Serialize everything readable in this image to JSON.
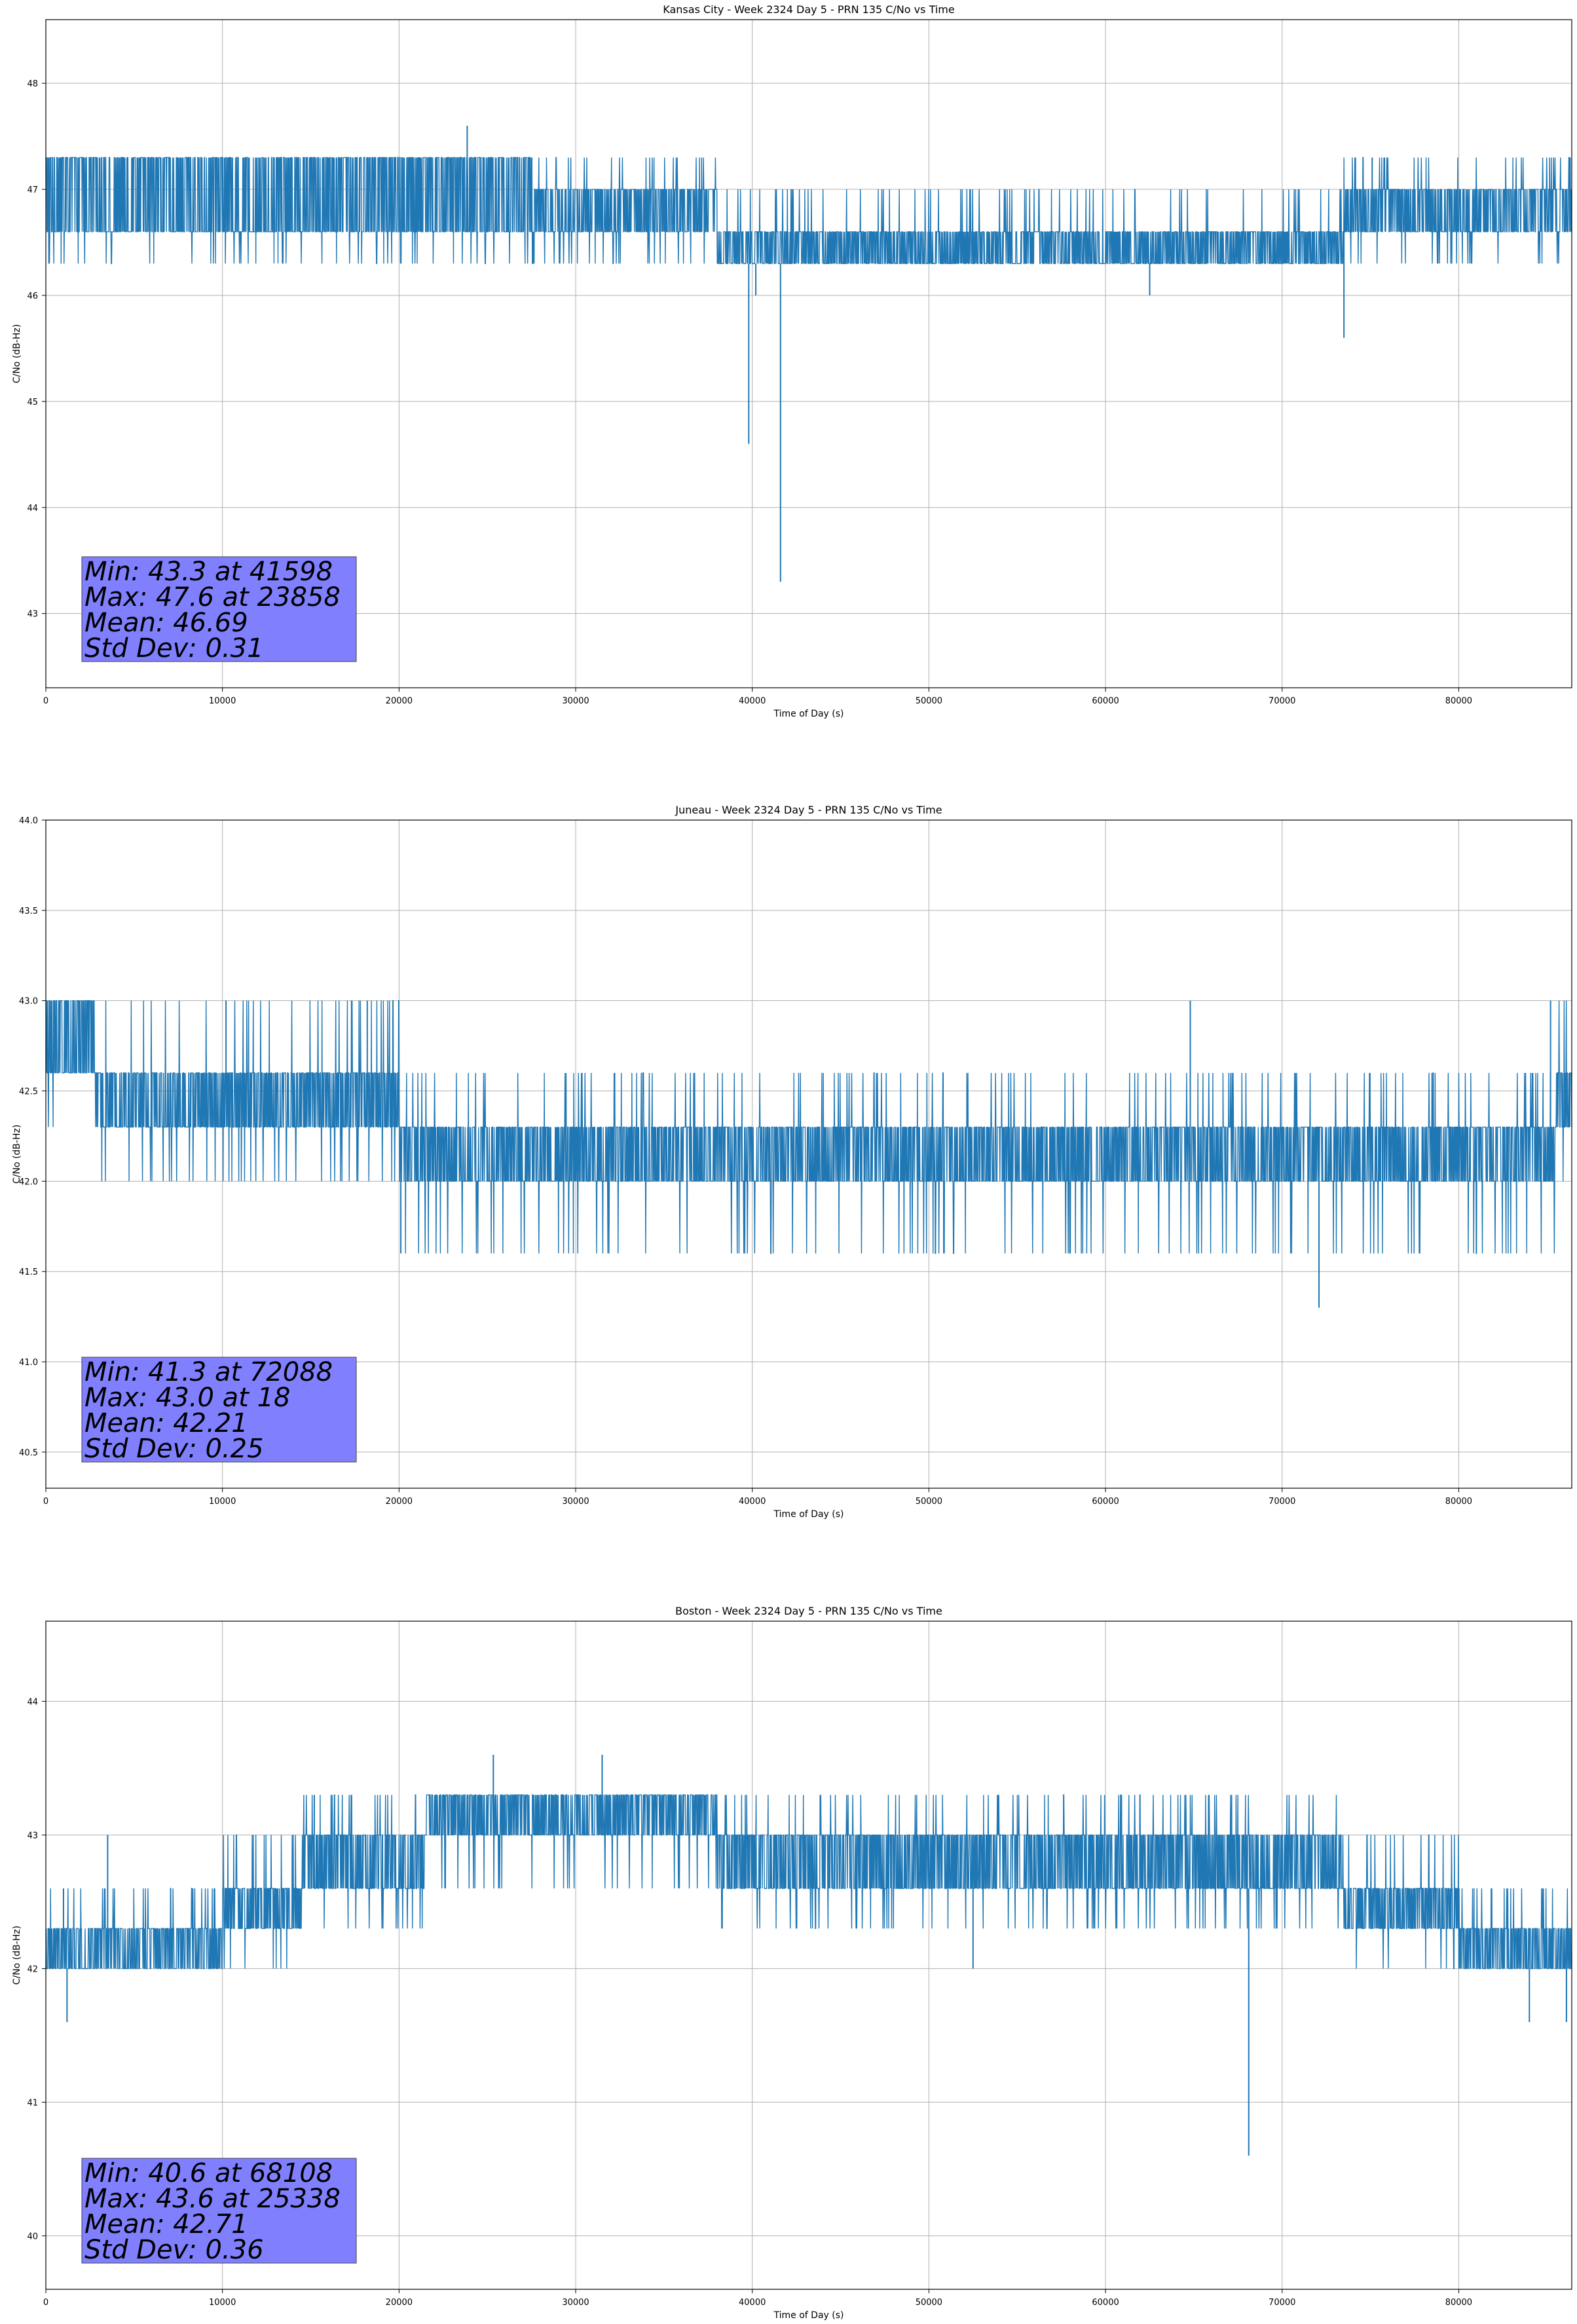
{
  "chart_data": [
    {
      "type": "line",
      "title": "Kansas City - Week 2324 Day 5 - PRN 135 C/No vs Time",
      "xlabel": "Time of Day (s)",
      "ylabel": "C/No (dB-Hz)",
      "xlim": [
        0,
        86400
      ],
      "ylim": [
        42.3,
        48.6
      ],
      "xticks": [
        0,
        10000,
        20000,
        30000,
        40000,
        50000,
        60000,
        70000,
        80000
      ],
      "yticks": [
        43,
        44,
        45,
        46,
        47,
        48
      ],
      "grid": true,
      "color": "#1f77b4",
      "levels": [
        46.3,
        46.6,
        47.0,
        47.3
      ],
      "baseline": [
        {
          "x": 0,
          "lo": 46.6,
          "hi": 47.3
        },
        {
          "x": 27500,
          "lo": 46.6,
          "hi": 47.3
        },
        {
          "x": 27600,
          "lo": 46.6,
          "hi": 47.0
        },
        {
          "x": 37500,
          "lo": 46.6,
          "hi": 47.0
        },
        {
          "x": 38000,
          "lo": 46.3,
          "hi": 46.6
        },
        {
          "x": 73000,
          "lo": 46.3,
          "hi": 46.6
        },
        {
          "x": 73500,
          "lo": 46.6,
          "hi": 47.0
        },
        {
          "x": 86400,
          "lo": 46.6,
          "hi": 47.0
        }
      ],
      "spikes": [
        {
          "x": 23858,
          "y": 47.6
        },
        {
          "x": 39800,
          "y": 44.6
        },
        {
          "x": 41598,
          "y": 43.3
        },
        {
          "x": 40200,
          "y": 46.0
        },
        {
          "x": 62500,
          "y": 46.0
        },
        {
          "x": 73500,
          "y": 45.6
        },
        {
          "x": 75100,
          "y": 47.3
        },
        {
          "x": 86300,
          "y": 47.3
        }
      ],
      "stats": [
        "Min: 43.3 at 41598",
        "Max: 47.6 at 23858",
        "Mean: 46.69",
        "Std Dev: 0.31"
      ],
      "statbox_color": "#8080ff"
    },
    {
      "type": "line",
      "title": "Juneau - Week 2324 Day 5 - PRN 135 C/No vs Time",
      "xlabel": "Time of Day (s)",
      "ylabel": "C/No (dB-Hz)",
      "xlim": [
        0,
        86400
      ],
      "ylim": [
        40.3,
        44.0
      ],
      "xticks": [
        0,
        10000,
        20000,
        30000,
        40000,
        50000,
        60000,
        70000,
        80000
      ],
      "yticks": [
        40.5,
        41.0,
        41.5,
        42.0,
        42.5,
        43.0,
        43.5,
        44.0
      ],
      "grid": true,
      "color": "#1f77b4",
      "levels": [
        41.6,
        42.0,
        42.3,
        42.6,
        43.0
      ],
      "baseline": [
        {
          "x": 0,
          "lo": 42.6,
          "hi": 43.0
        },
        {
          "x": 2800,
          "lo": 42.3,
          "hi": 42.6
        },
        {
          "x": 19500,
          "lo": 42.3,
          "hi": 42.6
        },
        {
          "x": 20000,
          "lo": 42.0,
          "hi": 42.3
        },
        {
          "x": 85000,
          "lo": 42.0,
          "hi": 42.3
        },
        {
          "x": 85500,
          "lo": 42.3,
          "hi": 42.6
        },
        {
          "x": 86400,
          "lo": 42.3,
          "hi": 42.6
        }
      ],
      "spikes": [
        {
          "x": 72088,
          "y": 41.3
        },
        {
          "x": 18,
          "y": 43.0
        },
        {
          "x": 10200,
          "y": 43.0
        },
        {
          "x": 18200,
          "y": 43.0
        },
        {
          "x": 64800,
          "y": 43.0
        },
        {
          "x": 85200,
          "y": 43.0
        },
        {
          "x": 20100,
          "y": 41.6
        }
      ],
      "stats": [
        "Min: 41.3 at 72088",
        "Max: 43.0 at 18",
        "Mean: 42.21",
        "Std Dev: 0.25"
      ],
      "statbox_color": "#8080ff"
    },
    {
      "type": "line",
      "title": "Boston - Week 2324 Day 5 - PRN 135 C/No vs Time",
      "xlabel": "Time of Day (s)",
      "ylabel": "C/No (dB-Hz)",
      "xlim": [
        0,
        86400
      ],
      "ylim": [
        39.6,
        44.6
      ],
      "xticks": [
        0,
        10000,
        20000,
        30000,
        40000,
        50000,
        60000,
        70000,
        80000
      ],
      "yticks": [
        40,
        41,
        42,
        43,
        44
      ],
      "grid": true,
      "color": "#1f77b4",
      "levels": [
        42.0,
        42.3,
        42.6,
        43.0,
        43.3
      ],
      "baseline": [
        {
          "x": 0,
          "lo": 42.0,
          "hi": 42.3
        },
        {
          "x": 10000,
          "lo": 42.3,
          "hi": 42.6
        },
        {
          "x": 14500,
          "lo": 42.6,
          "hi": 43.0
        },
        {
          "x": 21500,
          "lo": 43.0,
          "hi": 43.3
        },
        {
          "x": 38000,
          "lo": 42.6,
          "hi": 43.0
        },
        {
          "x": 73500,
          "lo": 42.3,
          "hi": 42.6
        },
        {
          "x": 80000,
          "lo": 42.0,
          "hi": 42.3
        },
        {
          "x": 86400,
          "lo": 42.0,
          "hi": 42.3
        }
      ],
      "spikes": [
        {
          "x": 68108,
          "y": 40.6
        },
        {
          "x": 25338,
          "y": 43.6
        },
        {
          "x": 31500,
          "y": 43.6
        },
        {
          "x": 1200,
          "y": 41.6
        },
        {
          "x": 84000,
          "y": 41.6
        },
        {
          "x": 86100,
          "y": 41.6
        },
        {
          "x": 1000,
          "y": 42.6
        },
        {
          "x": 3500,
          "y": 43.0
        },
        {
          "x": 15200,
          "y": 43.3
        },
        {
          "x": 52500,
          "y": 42.0
        }
      ],
      "stats": [
        "Min: 40.6 at 68108",
        "Max: 43.6 at 25338",
        "Mean: 42.71",
        "Std Dev: 0.36"
      ],
      "statbox_color": "#8080ff"
    }
  ]
}
